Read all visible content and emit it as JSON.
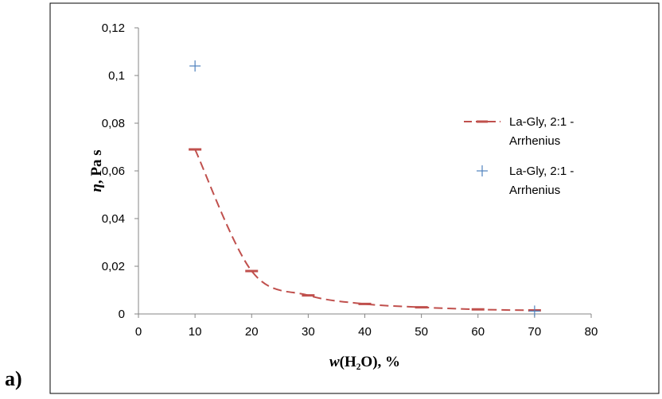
{
  "figure_label": "a)",
  "chart_data": {
    "type": "line",
    "title": "",
    "xlabel": "w(H₂O), %",
    "ylabel": "η, Pa s",
    "xlim": [
      0,
      80
    ],
    "ylim": [
      0,
      0.12
    ],
    "x_ticks": [
      "0",
      "10",
      "20",
      "30",
      "40",
      "50",
      "60",
      "70",
      "80"
    ],
    "y_ticks": [
      "0",
      "0,02",
      "0,04",
      "0,06",
      "0,08",
      "0,1",
      "0,12"
    ],
    "grid": false,
    "legend_position": "right",
    "series": [
      {
        "name": "La-Gly, 2:1 - Arrhenius",
        "style": "dashed-line-with-dash-markers",
        "color": "#c0504d",
        "x": [
          10,
          20,
          30,
          40,
          50,
          60,
          70
        ],
        "y": [
          0.069,
          0.018,
          0.0078,
          0.0042,
          0.0028,
          0.0019,
          0.0015
        ]
      },
      {
        "name": "La-Gly, 2:1 - Arrhenius",
        "style": "plus-markers",
        "color": "#4f81bd",
        "x": [
          10,
          70
        ],
        "y": [
          0.104,
          0.0012
        ]
      }
    ]
  }
}
